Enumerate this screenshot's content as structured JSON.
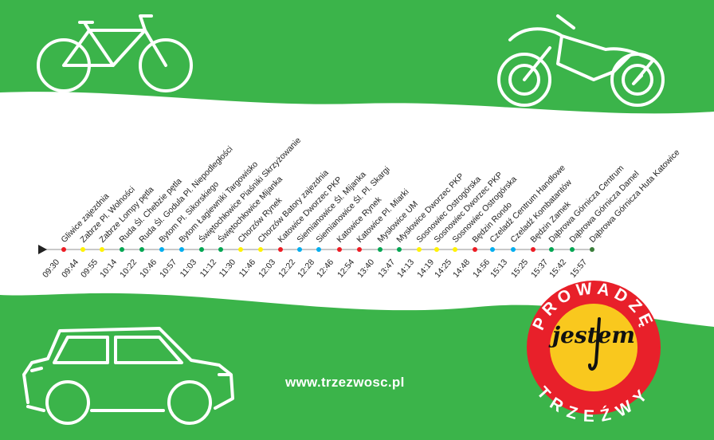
{
  "colors": {
    "background": "#3bb44a",
    "band": "#ffffff",
    "line": "#c8c8c8",
    "red": "#ed1c24",
    "yellow": "#fff200",
    "green": "#00a651",
    "blue": "#00aeef",
    "dark_green": "#3a7d3a",
    "logo_ring": "#e8202a",
    "logo_center": "#f9c81e"
  },
  "icons": [
    "bicycle-icon",
    "motorcycle-icon",
    "car-icon",
    "route-start-arrow-icon"
  ],
  "route": {
    "start_time": "09:30",
    "stops": [
      {
        "name": "Gliwice zajezdnia",
        "time": "09:44",
        "color": "red"
      },
      {
        "name": "Zabrze Pl. Wolności",
        "time": "09:55",
        "color": "yellow"
      },
      {
        "name": "Zabrze Lompy pętla",
        "time": "10:14",
        "color": "yellow"
      },
      {
        "name": "Ruda Śl. Chebzie pętla",
        "time": "10:22",
        "color": "green"
      },
      {
        "name": "Ruda Śl. Godula Pl. Niepodległości",
        "time": "10:46",
        "color": "green"
      },
      {
        "name": "Bytom Pl. Sikorskiego",
        "time": "10:57",
        "color": "blue"
      },
      {
        "name": "Bytom Łagiewniki Targowisko",
        "time": "11:03",
        "color": "blue"
      },
      {
        "name": "Świętochłowice Piaśniki Skrzyżowanie",
        "time": "11:12",
        "color": "green"
      },
      {
        "name": "Świętochłowice Mijanka",
        "time": "11:30",
        "color": "green"
      },
      {
        "name": "Chorzów Rynek",
        "time": "11:46",
        "color": "yellow"
      },
      {
        "name": "Chorzów Batory zajezdnia",
        "time": "12:03",
        "color": "yellow"
      },
      {
        "name": "Katowice Dworzec PKP",
        "time": "12:22",
        "color": "red"
      },
      {
        "name": "Siemianowice Śl. Mijanka",
        "time": "12:28",
        "color": "blue"
      },
      {
        "name": "Siemianowice Śl. Pl. Skargi",
        "time": "12:46",
        "color": "blue"
      },
      {
        "name": "Katowice Rynek",
        "time": "12:54",
        "color": "red"
      },
      {
        "name": "Katowice Pl. Miarki",
        "time": "13:40",
        "color": "red"
      },
      {
        "name": "Mysłowice UM",
        "time": "13:47",
        "color": "green"
      },
      {
        "name": "Mysłowice Dworzec PKP",
        "time": "14:13",
        "color": "green"
      },
      {
        "name": "Sosnowiec Ostrogórska",
        "time": "14:19",
        "color": "yellow"
      },
      {
        "name": "Sosnowiec Dworzec PKP",
        "time": "14:25",
        "color": "yellow"
      },
      {
        "name": "Sosnowiec Ostrogórska",
        "time": "14:48",
        "color": "yellow"
      },
      {
        "name": "Będzin Rondo",
        "time": "14:56",
        "color": "red"
      },
      {
        "name": "Czeladź Centrum Handlowe",
        "time": "15:13",
        "color": "blue"
      },
      {
        "name": "Czeladź Kombatantów",
        "time": "15:25",
        "color": "blue"
      },
      {
        "name": "Będzin Zamek",
        "time": "15:37",
        "color": "red"
      },
      {
        "name": "Dąbrowa Górnicza Centrum",
        "time": "15:42",
        "color": "green"
      },
      {
        "name": "Dąbrowa Górnicza Damel",
        "time": "15:57",
        "color": "green"
      },
      {
        "name": "Dąbrowa Górnicza Huta Katowice",
        "time": "",
        "color": "dark_green"
      }
    ]
  },
  "website": "www.trzezwosc.pl",
  "logo": {
    "top": "PROWADZĘ",
    "center": "jestem",
    "bottom": "TRZEŹWY"
  }
}
